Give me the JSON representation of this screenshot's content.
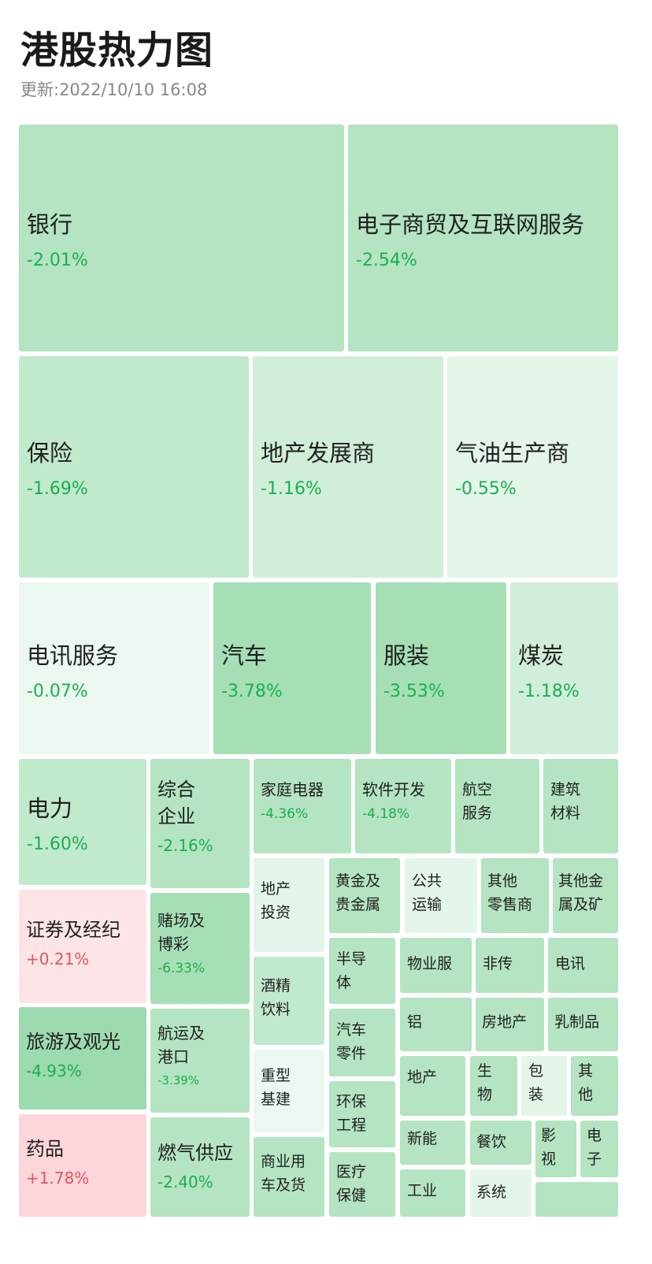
{
  "header": {
    "title": "港股热力图",
    "update_time": "更新:2022/10/10 16:08"
  },
  "colors": {
    "down": "#19b050",
    "up": "#e05560"
  },
  "tiles": {
    "bank": {
      "name": "银行",
      "change": "-2.01%"
    },
    "ecommerce": {
      "name": "电子商贸及互联网服务",
      "change": "-2.54%"
    },
    "insurance": {
      "name": "保险",
      "change": "-1.69%"
    },
    "property_dev": {
      "name": "地产发展商",
      "change": "-1.16%"
    },
    "oil_gas": {
      "name": "气油生产商",
      "change": "-0.55%"
    },
    "telecom_services": {
      "name": "电讯服务",
      "change": "-0.07%"
    },
    "auto": {
      "name": "汽车",
      "change": "-3.78%"
    },
    "apparel": {
      "name": "服装",
      "change": "-3.53%"
    },
    "coal": {
      "name": "煤炭",
      "change": "-1.18%"
    },
    "power": {
      "name": "电力",
      "change": "-1.60%"
    },
    "conglomerate": {
      "name": "综合\n企业",
      "change": "-2.16%"
    },
    "home_appliances": {
      "name": "家庭电器",
      "change": "-4.36%"
    },
    "software": {
      "name": "软件开发",
      "change": "-4.18%"
    },
    "aviation": {
      "name": "航空\n服务"
    },
    "building_materials": {
      "name": "建筑\n材料"
    },
    "securities": {
      "name": "证券及经纪",
      "change": "+0.21%"
    },
    "gaming": {
      "name": "赌场及\n博彩",
      "change": "-6.33%"
    },
    "property_invest": {
      "name": "地产\n投资"
    },
    "gold": {
      "name": "黄金及\n贵金属"
    },
    "public_transport": {
      "name": "公共\n运输"
    },
    "other_retail": {
      "name": "其他\n零售商"
    },
    "other_metals": {
      "name": "其他金\n属及矿"
    },
    "liquor": {
      "name": "酒精\n饮料"
    },
    "semiconductor": {
      "name": "半导\n体"
    },
    "property_mgmt": {
      "name": "物业服"
    },
    "non_trad": {
      "name": "非传"
    },
    "telecom": {
      "name": "电讯"
    },
    "tourism": {
      "name": "旅游及观光",
      "change": "-4.93%"
    },
    "shipping": {
      "name": "航运及\n港口",
      "change": "-3.39%"
    },
    "auto_parts": {
      "name": "汽车\n零件"
    },
    "aluminum": {
      "name": "铝"
    },
    "real_estate": {
      "name": "房地产"
    },
    "dairy": {
      "name": "乳制品"
    },
    "heavy_infra": {
      "name": "重型\n基建"
    },
    "env": {
      "name": "环保\n工程"
    },
    "property_small": {
      "name": "地产"
    },
    "bio": {
      "name": "生\n物"
    },
    "packaging": {
      "name": "包\n装"
    },
    "other": {
      "name": "其\n他"
    },
    "pharma": {
      "name": "药品",
      "change": "+1.78%"
    },
    "gas_supply": {
      "name": "燃气供应",
      "change": "-2.40%"
    },
    "commercial_vehicle": {
      "name": "商业用\n车及货"
    },
    "healthcare": {
      "name": "医疗\n保健"
    },
    "new_energy": {
      "name": "新能"
    },
    "catering": {
      "name": "餐饮"
    },
    "media": {
      "name": "影\n视"
    },
    "electronics": {
      "name": "电\n子"
    },
    "industrial": {
      "name": "工业"
    },
    "system": {
      "name": "系统"
    }
  }
}
